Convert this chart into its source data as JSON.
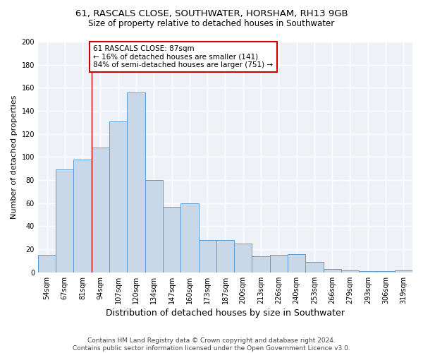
{
  "title1": "61, RASCALS CLOSE, SOUTHWATER, HORSHAM, RH13 9GB",
  "title2": "Size of property relative to detached houses in Southwater",
  "xlabel": "Distribution of detached houses by size in Southwater",
  "ylabel": "Number of detached properties",
  "categories": [
    "54sqm",
    "67sqm",
    "81sqm",
    "94sqm",
    "107sqm",
    "120sqm",
    "134sqm",
    "147sqm",
    "160sqm",
    "173sqm",
    "187sqm",
    "200sqm",
    "213sqm",
    "226sqm",
    "240sqm",
    "253sqm",
    "266sqm",
    "279sqm",
    "293sqm",
    "306sqm",
    "319sqm"
  ],
  "values": [
    15,
    89,
    98,
    108,
    131,
    156,
    80,
    57,
    60,
    28,
    28,
    25,
    14,
    15,
    16,
    9,
    3,
    2,
    1,
    1,
    2
  ],
  "bar_color": "#c8d8e8",
  "bar_edge_color": "#5b9bd5",
  "annotation_text": "61 RASCALS CLOSE: 87sqm\n← 16% of detached houses are smaller (141)\n84% of semi-detached houses are larger (751) →",
  "annotation_box_color": "#ffffff",
  "annotation_box_edge": "#cc0000",
  "red_line_x": 2.5,
  "ylim": [
    0,
    200
  ],
  "yticks": [
    0,
    20,
    40,
    60,
    80,
    100,
    120,
    140,
    160,
    180,
    200
  ],
  "background_color": "#eef2f7",
  "grid_color": "#ffffff",
  "footer": "Contains HM Land Registry data © Crown copyright and database right 2024.\nContains public sector information licensed under the Open Government Licence v3.0.",
  "title1_fontsize": 9.5,
  "title2_fontsize": 8.5,
  "xlabel_fontsize": 9,
  "ylabel_fontsize": 8,
  "tick_fontsize": 7,
  "footer_fontsize": 6.5,
  "annot_fontsize": 7.5
}
